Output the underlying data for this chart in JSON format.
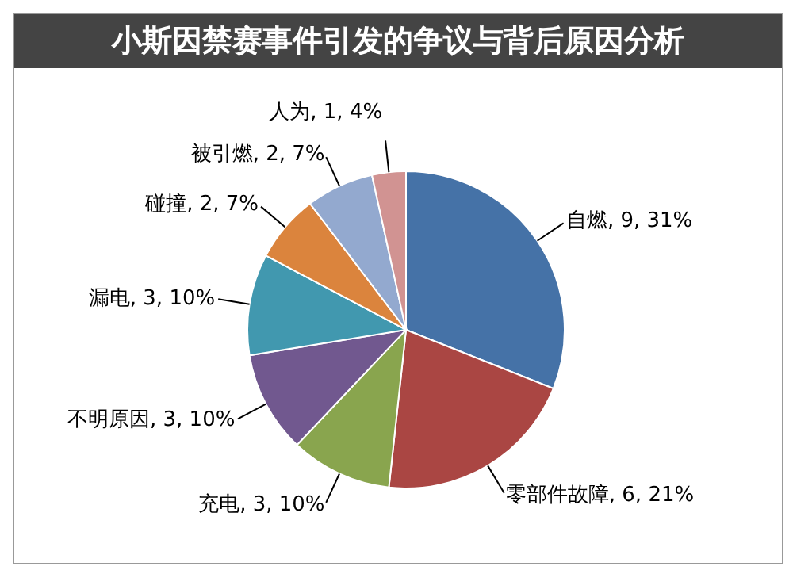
{
  "chart_data": {
    "type": "pie",
    "title": "小斯因禁赛事件引发的争议与背后原因分析",
    "categories": [
      "自燃",
      "零部件故障",
      "充电",
      "不明原因",
      "漏电",
      "碰撞",
      "被引燃",
      "人为"
    ],
    "values": [
      9,
      6,
      3,
      3,
      3,
      2,
      2,
      1
    ],
    "value_labels": [
      "9, 31%",
      "6, 21%",
      "3, 10%",
      "3, 10%",
      "3, 10%",
      "2, 7%",
      "2, 7%",
      "1, 4%"
    ],
    "colors": [
      "#4572a7",
      "#aa4643",
      "#89a54e",
      "#71588f",
      "#4198af",
      "#db843d",
      "#93a9cf",
      "#d19392"
    ],
    "legend": false
  }
}
